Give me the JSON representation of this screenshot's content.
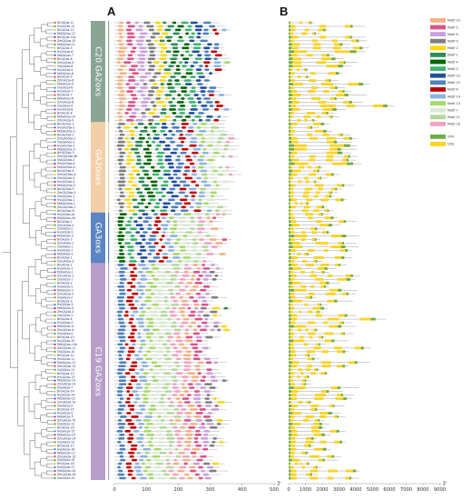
{
  "panels": {
    "a": "A",
    "b": "B"
  },
  "groups": [
    {
      "label": "C20 GA2oxs",
      "color": "#8aa595",
      "rows": 28
    },
    {
      "label": "GA20oxs",
      "color": "#f2cfa7",
      "rows": 25
    },
    {
      "label": "GA3oxs",
      "color": "#5b85c4",
      "rows": 14
    },
    {
      "label": "C19 GA2oxs",
      "color": "#b79fc9",
      "rows": 60
    }
  ],
  "genes": [
    "BrGA2ox-11",
    "HvGA2ox-12",
    "BrGA2ox-11",
    "MdGA2ox-12",
    "BrGA2ox-11b",
    "ZmGA2ox-10",
    "MdGA2ox-11",
    "BrGA2ox-5",
    "HvGA2ox-6",
    "MdGA2ox-7",
    "BrGA2ox-6",
    "ZmGA2ox-5",
    "OsGA2ox-8",
    "HvGA2ox-9",
    "MdGA2ox-8",
    "BrGA2ox-9",
    "ZmGA2ox-6",
    "MdGA2ox-9",
    "OsGA2ox-6",
    "HvGA2ox-7",
    "BrGA2ox-7",
    "MdGA2ox-6",
    "ZmGA2ox-8",
    "OsGA2ox-9",
    "HvGA2ox-8",
    "BrGA2ox-8",
    "MdGA2ox-10",
    "ZmGA2ox-9",
    "BrGA20ox-1",
    "HvGA20ox-2",
    "MdGA20ox-2",
    "BrGA20ox-2",
    "ZmGA20ox-2",
    "OsGA20ox-2",
    "HvGA20ox-3",
    "MdGA20ox-3",
    "BrGA20ox-3",
    "ZmGA20ox-3b",
    "OsGA20ox-3",
    "HvGA20ox-4",
    "MdGA20ox-4",
    "BrGA20ox-4",
    "ZmGA20ox-4",
    "OsGA20ox-4",
    "HvGA20ox-5",
    "MdGA20ox-5",
    "BrGA20ox-5",
    "ZmGA20ox-5",
    "OsGA20ox-1",
    "HvGA20ox-1",
    "MdGA20ox-1",
    "ZmGA20ox-1",
    "BrGA20ox-6",
    "HvGA3ox-2a",
    "MdGA3ox-2b",
    "BrGA3ox-2",
    "ZmGA3ox-2",
    "OsGA3ox-2",
    "HvGA3ox-3",
    "MdGA3ox-3",
    "BrGA3ox-3",
    "ZmGA3ox-1",
    "OsGA3ox-1",
    "HvGA3ox-1",
    "MdGA3ox-1",
    "BrGA3ox-1",
    "ZmGA3ox-3",
    "BrGA2ox-1",
    "HvGA2ox-1",
    "MdGA2ox-1",
    "ZmGA2ox-1",
    "OsGA2ox-1",
    "BrGA2ox-2",
    "HvGA2ox-2",
    "MdGA2ox-2",
    "ZmGA2ox-2",
    "OsGA2ox-2",
    "BrGA2ox-3",
    "HvGA2ox-3",
    "MdGA2ox-3",
    "ZmGA2ox-3",
    "OsGA2ox-3",
    "BrGA2ox-4",
    "HvGA2ox-4",
    "MdGA2ox-4",
    "ZmGA2ox-4",
    "OsGA2ox-4",
    "BrGA2ox-10",
    "HvGA2ox-10",
    "MdGA2ox-10b",
    "ZmGA2ox-11",
    "OsGA2ox-10",
    "BrGA2ox-12",
    "HvGA2ox-11",
    "MdGA2ox-13",
    "ZmGA2ox-12",
    "OsGA2ox-11",
    "BrGA2ox-13",
    "HvGA2ox-13",
    "MdGA2ox-14",
    "ZmGA2ox-13",
    "OsGA2ox-7",
    "BrGA2ox-14",
    "HvGA2ox-14",
    "MdGA2ox-15",
    "ZmGA2ox-7a",
    "OsGA2ox-5",
    "BrGA2ox-15",
    "HvGA2ox-5",
    "MdGA2ox-5",
    "ZmGA2ox-7b",
    "OsGA2ox-12",
    "BrGA2ox-16",
    "HvGA2ox-15",
    "MdGA2ox-16",
    "ZmGA2ox-14",
    "OsGA2ox-13",
    "BrGA2ox-17",
    "HvGA2ox-16",
    "MdGA2ox-17",
    "ZmGA2ox-15",
    "OsGA2ox-14",
    "BrGA2ox-18",
    "HvGA2ox-17",
    "MdGA2ox-18",
    "ZmGA2ox-16",
    "OsGA2ox-15"
  ],
  "motif_axis": {
    "ticks": [
      "0",
      "100",
      "200",
      "300",
      "400",
      "500"
    ],
    "end_label": "3'"
  },
  "structure_axis": {
    "ticks": [
      "0",
      "1000",
      "2000",
      "3000",
      "4000",
      "5000",
      "6000",
      "7000",
      "8000",
      "9000"
    ],
    "end_label": "3'"
  },
  "motif_legend": [
    {
      "name": "Motif 10",
      "color": "#f4b183"
    },
    {
      "name": "Motif 5",
      "color": "#d9548c"
    },
    {
      "name": "Motif 8",
      "color": "#c9a0dc"
    },
    {
      "name": "Motif 9",
      "color": "#7f7f7f"
    },
    {
      "name": "Motif 2",
      "color": "#ffd700"
    },
    {
      "name": "Motif 1",
      "color": "#2e8b57"
    },
    {
      "name": "Motif 4",
      "color": "#006400"
    },
    {
      "name": "Motif 3",
      "color": "#3cb371"
    },
    {
      "name": "Motif 19",
      "color": "#1f4e9c"
    },
    {
      "name": "Motif 15",
      "color": "#4f81bd"
    },
    {
      "name": "Motif 6",
      "color": "#c00000"
    },
    {
      "name": "Motif 14",
      "color": "#8db3e2"
    },
    {
      "name": "Motif 13",
      "color": "#a6d96a"
    },
    {
      "name": "Motif 7",
      "color": "#d9ead3"
    },
    {
      "name": "Motif 11",
      "color": "#b5d79d"
    },
    {
      "name": "Motif 16",
      "color": "#f2a3c1"
    }
  ],
  "structure_legend": [
    {
      "name": "UTR",
      "color": "#70ad47"
    },
    {
      "name": "CDS",
      "color": "#ffd21f"
    }
  ],
  "colors": {
    "gene_label": "#1a2a6c",
    "tree_line": "#555555",
    "utr": "#70ad47",
    "cds": "#ffd21f",
    "intron": "#888888",
    "axis": "#999999"
  }
}
